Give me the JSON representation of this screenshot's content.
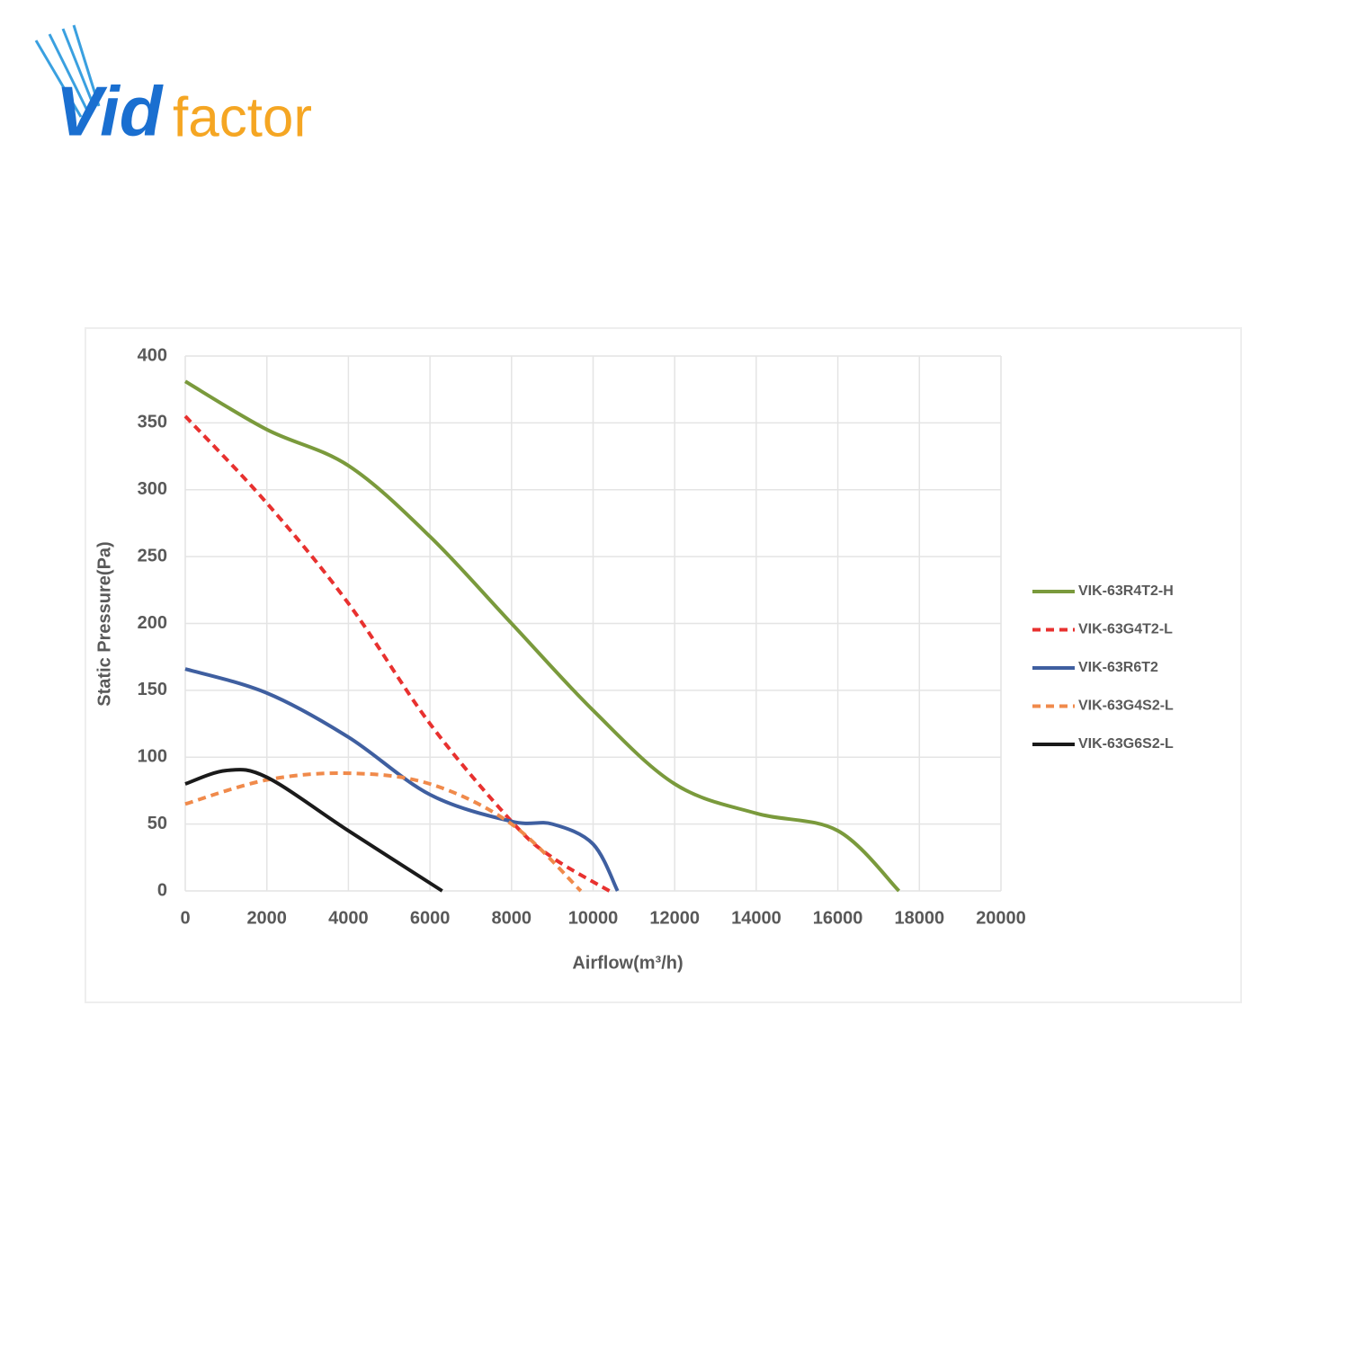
{
  "logo": {
    "brand_a": "Vid",
    "brand_b": "factor"
  },
  "chart_data": {
    "type": "line",
    "x_label": "Airflow(m³/h)",
    "y_label": "Static Pressure(Pa)",
    "xlim": [
      0,
      20000
    ],
    "xticks": [
      0,
      2000,
      4000,
      6000,
      8000,
      10000,
      12000,
      14000,
      16000,
      18000,
      20000
    ],
    "ylim": [
      0,
      400
    ],
    "yticks": [
      0,
      50,
      100,
      150,
      200,
      250,
      300,
      350,
      400
    ],
    "grid": true,
    "legend": "right",
    "series": [
      {
        "name": "VIK-63R4T2-H",
        "color": "#7a9a3c",
        "dash": false,
        "x": [
          0,
          2000,
          4000,
          6000,
          8000,
          10000,
          12000,
          14000,
          16000,
          17500
        ],
        "values": [
          381,
          345,
          318,
          265,
          200,
          135,
          80,
          58,
          45,
          0
        ]
      },
      {
        "name": "VIK-63G4T2-L",
        "color": "#e8312f",
        "dash": true,
        "x": [
          0,
          2000,
          4000,
          6000,
          8000,
          9000,
          10400
        ],
        "values": [
          355,
          290,
          215,
          125,
          52,
          25,
          0
        ]
      },
      {
        "name": "VIK-63R6T2",
        "color": "#3f5fa0",
        "dash": false,
        "x": [
          0,
          2000,
          4000,
          6000,
          8000,
          9000,
          10000,
          10600
        ],
        "values": [
          166,
          148,
          115,
          72,
          52,
          50,
          35,
          0
        ]
      },
      {
        "name": "VIK-63G4S2-L",
        "color": "#f08a4b",
        "dash": true,
        "x": [
          0,
          2000,
          4000,
          6000,
          8000,
          9700
        ],
        "values": [
          65,
          83,
          88,
          80,
          50,
          0
        ]
      },
      {
        "name": "VIK-63G6S2-L",
        "color": "#1a1a1a",
        "dash": false,
        "x": [
          0,
          1000,
          2000,
          4000,
          6300
        ],
        "values": [
          80,
          90,
          85,
          45,
          0
        ]
      }
    ]
  }
}
